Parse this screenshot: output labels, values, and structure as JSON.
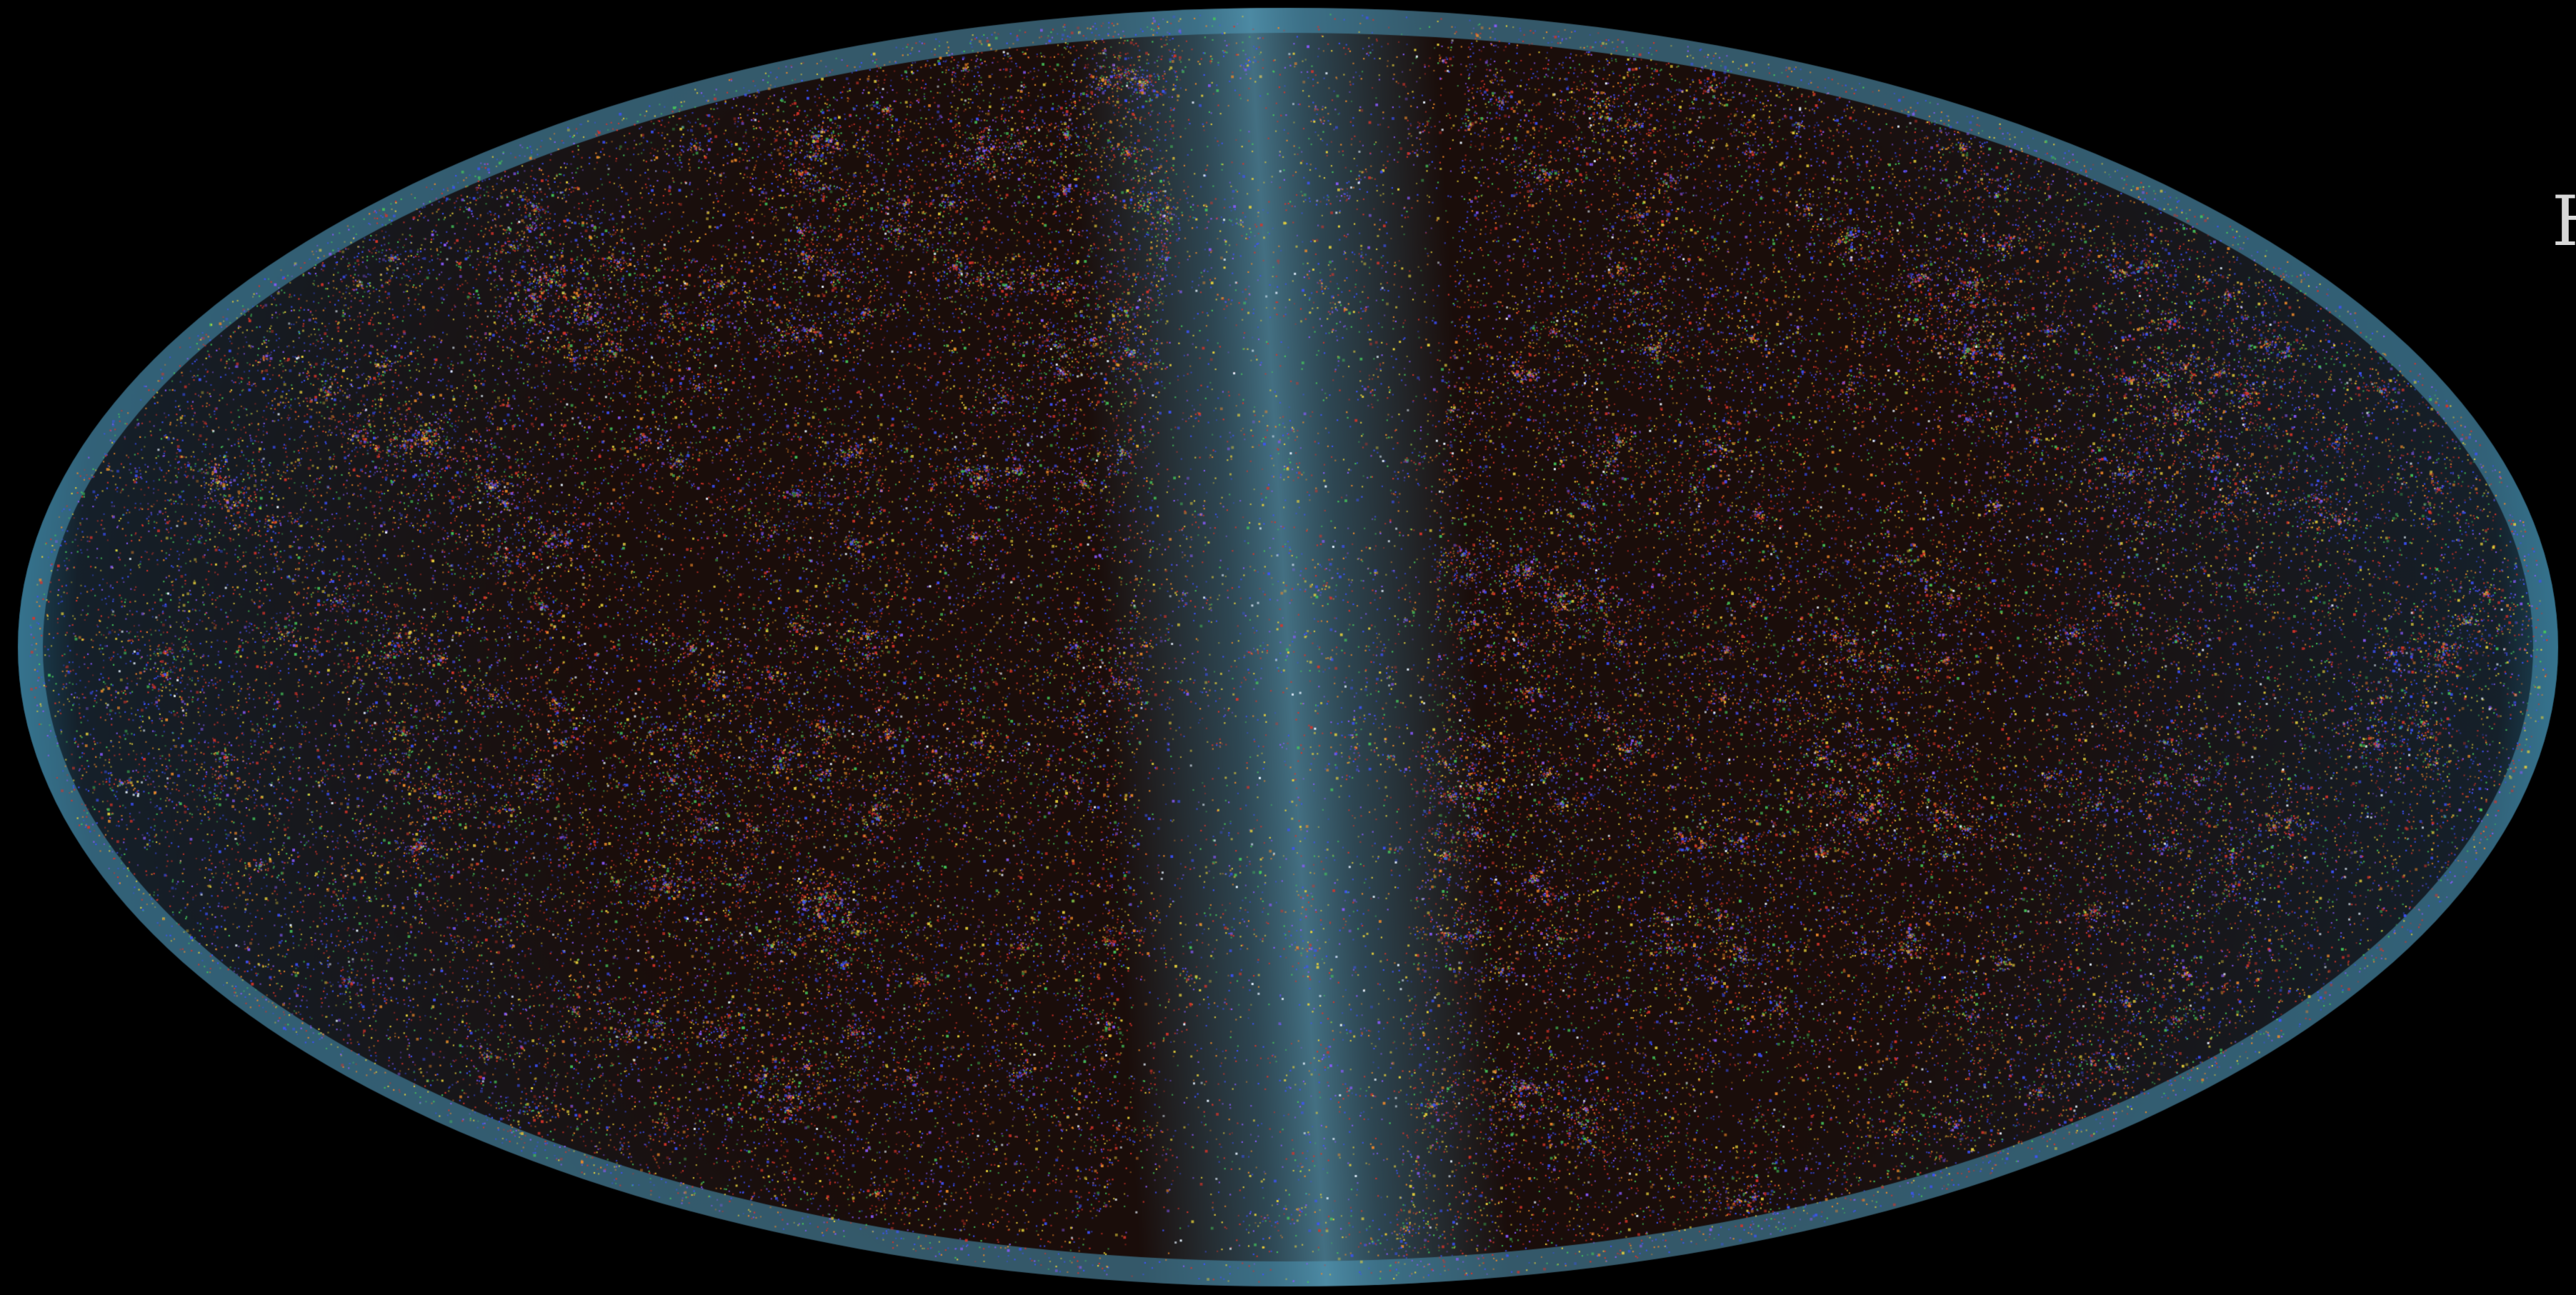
{
  "image": {
    "background_color": "#000000",
    "projection": "mollweide",
    "colors": {
      "halo": "#4a98b8",
      "halo_dark": "#1d4d62",
      "galactic_plane": "#6fb7d2",
      "interior": "#1a0d0a",
      "galaxies_red": "#d8342a",
      "galaxies_orange": "#f08a2a",
      "galaxies_yellow": "#e8d23a",
      "galaxies_green": "#46c85a",
      "galaxies_blue": "#3d52ff",
      "galaxies_violet": "#8a5aff",
      "galaxies_white": "#e6f2ff"
    }
  },
  "edge_text": "H"
}
